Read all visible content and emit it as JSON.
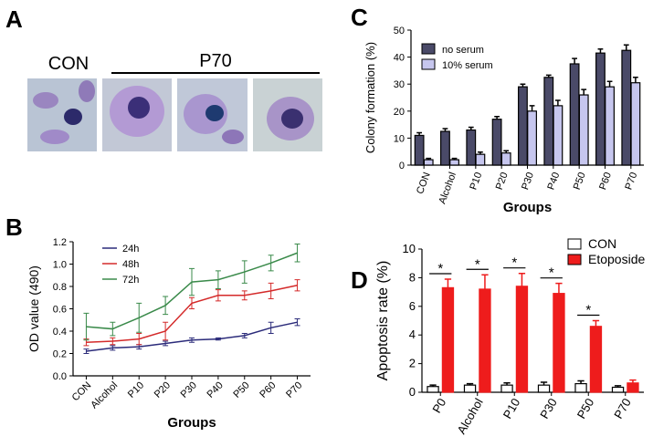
{
  "figure": {
    "panel_labels": [
      "A",
      "B",
      "C",
      "D"
    ],
    "image_labels": [
      "CON",
      "P70"
    ]
  },
  "chart_data": [
    {
      "type": "line",
      "xlabel": "Groups",
      "ylabel": "OD value (490)",
      "categories": [
        "CON",
        "Alcohol",
        "P10",
        "P20",
        "P30",
        "P40",
        "P50",
        "P60",
        "P70"
      ],
      "series": [
        {
          "name": "24h",
          "color": "#2b2b7a",
          "values": [
            0.22,
            0.25,
            0.26,
            0.29,
            0.32,
            0.33,
            0.36,
            0.43,
            0.48
          ],
          "errors": [
            0.02,
            0.02,
            0.02,
            0.02,
            0.02,
            0.01,
            0.02,
            0.05,
            0.03
          ]
        },
        {
          "name": "48h",
          "color": "#d42a2a",
          "values": [
            0.3,
            0.31,
            0.33,
            0.4,
            0.65,
            0.72,
            0.72,
            0.76,
            0.81
          ],
          "errors": [
            0.03,
            0.03,
            0.05,
            0.08,
            0.05,
            0.05,
            0.04,
            0.07,
            0.05
          ]
        },
        {
          "name": "72h",
          "color": "#3a8a4a",
          "values": [
            0.44,
            0.42,
            0.52,
            0.63,
            0.84,
            0.86,
            0.93,
            1.01,
            1.1
          ],
          "errors": [
            0.12,
            0.06,
            0.13,
            0.08,
            0.12,
            0.08,
            0.1,
            0.07,
            0.08
          ]
        }
      ],
      "ylim": [
        0,
        1.2
      ],
      "yticks": [
        {
          "value": 0,
          "label": "0.0"
        },
        0.2,
        0.4,
        0.6,
        0.8,
        {
          "value": 1,
          "label": "1.0"
        },
        1.2
      ],
      "legend": "top-left"
    },
    {
      "type": "bar",
      "xlabel": "Groups",
      "ylabel": "Colony formation (%)",
      "categories": [
        "CON",
        "Alcohol",
        "P10",
        "P20",
        "P30",
        "P40",
        "P50",
        "P60",
        "P70"
      ],
      "series": [
        {
          "name": "no serum",
          "color": "#4a4a68",
          "values": [
            11,
            12.5,
            13,
            17,
            29,
            32.5,
            37.5,
            41.5,
            42.5
          ],
          "errors": [
            1,
            1,
            1,
            1,
            1,
            0.8,
            2,
            1.5,
            2
          ]
        },
        {
          "name": "10% serum",
          "color": "#c6c6ee",
          "values": [
            2,
            2,
            4,
            4.5,
            20,
            22,
            26,
            29,
            30.5
          ],
          "errors": [
            0.5,
            0.5,
            0.8,
            0.8,
            2,
            2,
            2,
            2,
            2
          ]
        }
      ],
      "ylim": [
        0,
        50
      ],
      "yticks": [
        0,
        10,
        20,
        30,
        40,
        50
      ],
      "legend": "top-left"
    },
    {
      "type": "bar",
      "ylabel": "Apoptosis rate (%)",
      "categories": [
        "P0",
        "Alcohol",
        "P10",
        "P30",
        "P50",
        "P70"
      ],
      "series": [
        {
          "name": "CON",
          "color": "#ffffff",
          "values": [
            0.4,
            0.5,
            0.5,
            0.5,
            0.6,
            0.35
          ],
          "errors": [
            0.1,
            0.1,
            0.15,
            0.2,
            0.2,
            0.1
          ]
        },
        {
          "name": "Etoposide",
          "color": "#ee1c1c",
          "values": [
            7.3,
            7.2,
            7.4,
            6.9,
            4.6,
            0.65
          ],
          "errors": [
            0.6,
            1.0,
            0.9,
            0.7,
            0.4,
            0.2
          ]
        }
      ],
      "significance": [
        "*",
        "*",
        "*",
        "*",
        "*",
        null
      ],
      "ylim": [
        0,
        10
      ],
      "yticks": [
        0,
        2,
        4,
        6,
        8,
        10
      ],
      "legend": "top-right"
    }
  ]
}
